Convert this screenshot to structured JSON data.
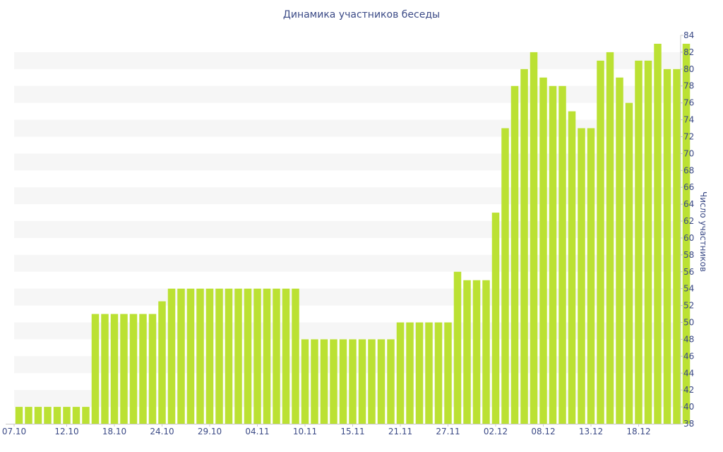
{
  "chart_data": {
    "type": "bar",
    "title": "Динамика участников беседы",
    "xlabel": "",
    "ylabel": "Число участников",
    "ylim": [
      38,
      84
    ],
    "y_ticks": [
      38,
      40,
      42,
      44,
      46,
      48,
      50,
      52,
      54,
      56,
      58,
      60,
      62,
      64,
      66,
      68,
      70,
      72,
      74,
      76,
      78,
      80,
      82,
      84
    ],
    "x_tick_labels": [
      "07.10",
      "12.10",
      "18.10",
      "24.10",
      "29.10",
      "04.11",
      "10.11",
      "15.11",
      "21.11",
      "27.11",
      "02.12",
      "08.12",
      "13.12",
      "18.12"
    ],
    "x_tick_indices": [
      0,
      5,
      10,
      15,
      20,
      25,
      30,
      35,
      40,
      45,
      50,
      55,
      60,
      65
    ],
    "values": [
      40,
      40,
      40,
      40,
      40,
      40,
      40,
      40,
      51,
      51,
      51,
      51,
      51,
      51,
      51,
      52.5,
      54,
      54,
      54,
      54,
      54,
      54,
      54,
      54,
      54,
      54,
      54,
      54,
      54,
      54,
      48,
      48,
      48,
      48,
      48,
      48,
      48,
      48,
      48,
      48,
      50,
      50,
      50,
      50,
      50,
      50,
      56,
      55,
      55,
      55,
      63,
      73,
      78,
      80,
      82,
      79,
      78,
      78,
      75,
      73,
      73,
      81,
      82,
      79,
      76,
      81,
      81,
      83,
      80,
      80,
      83
    ],
    "bar_color": "#bbe133",
    "band_color": "#f6f6f6",
    "text_color": "#3b4a86",
    "grid": "alternating horizontal bands",
    "y_axis_position": "right"
  }
}
